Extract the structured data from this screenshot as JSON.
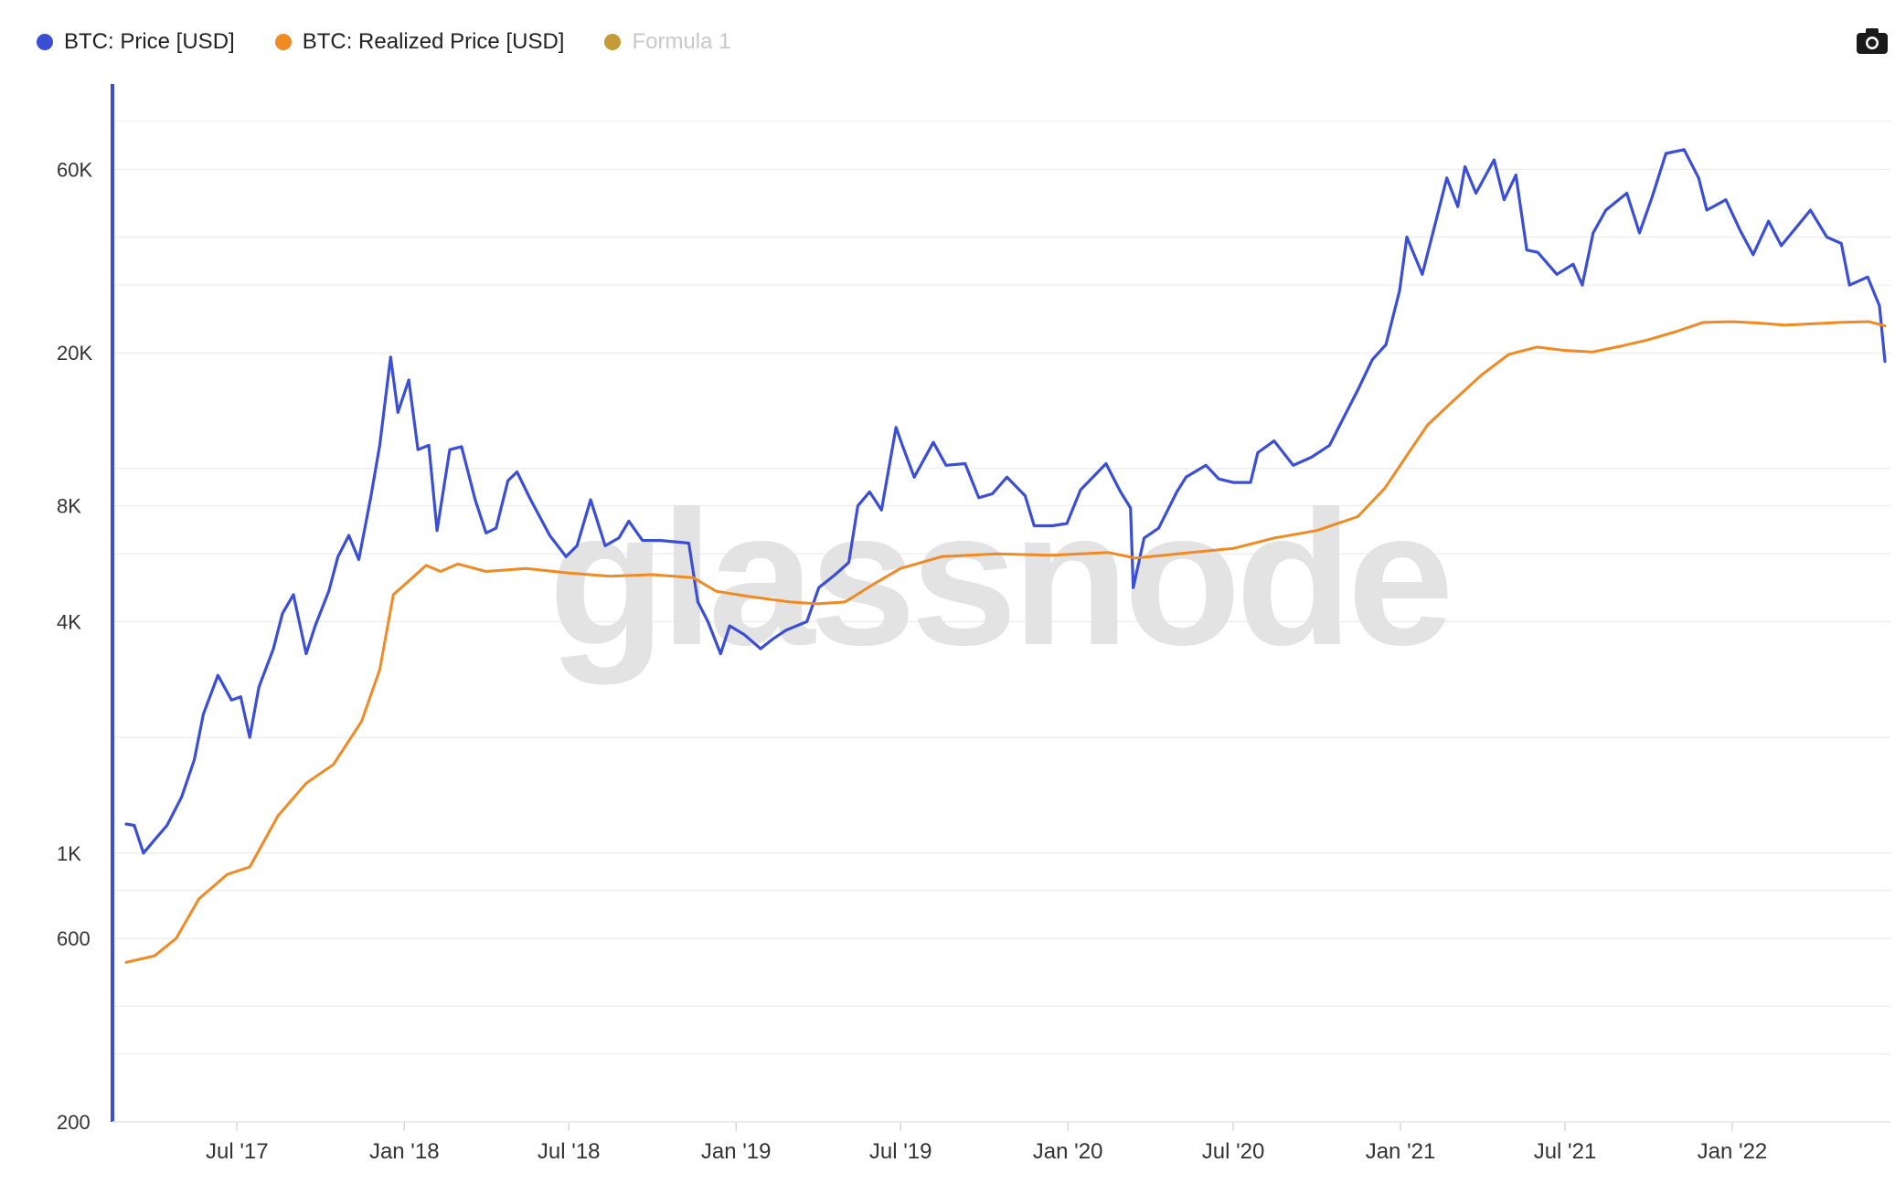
{
  "legend": [
    {
      "label": "BTC: Price [USD]",
      "color": "#3b4fd6",
      "dim": false
    },
    {
      "label": "BTC: Realized Price [USD]",
      "color": "#f08a24",
      "dim": false
    },
    {
      "label": "Formula 1",
      "color": "#c59a38",
      "dim": true
    }
  ],
  "toolbar": {
    "camera_icon": "camera-icon"
  },
  "watermark": "glassnode",
  "chart_data": {
    "type": "line",
    "scale": "log",
    "ylim": [
      200,
      100000
    ],
    "xlim": [
      "2017-03-01",
      "2022-06-18"
    ],
    "y_ticks": [
      200,
      600,
      1000,
      4000,
      8000,
      20000,
      60000
    ],
    "y_tick_labels": [
      "200",
      "600",
      "1K",
      "4K",
      "8K",
      "20K",
      "60K"
    ],
    "x_ticks": [
      "2017-07-01",
      "2018-01-01",
      "2018-07-01",
      "2019-01-01",
      "2019-07-01",
      "2020-01-01",
      "2020-07-01",
      "2021-01-01",
      "2021-07-01",
      "2022-01-01"
    ],
    "x_tick_labels": [
      "Jul '17",
      "Jan '18",
      "Jul '18",
      "Jan '19",
      "Jul '19",
      "Jan '20",
      "Jul '20",
      "Jan '21",
      "Jul '21",
      "Jan '22"
    ],
    "grid": true,
    "legend_position": "top-left",
    "series": [
      {
        "name": "BTC: Price [USD]",
        "color": "#3b4fd6",
        "points": [
          [
            "2017-03-01",
            1190
          ],
          [
            "2017-03-10",
            1180
          ],
          [
            "2017-03-20",
            1000
          ],
          [
            "2017-04-01",
            1080
          ],
          [
            "2017-04-15",
            1180
          ],
          [
            "2017-05-01",
            1400
          ],
          [
            "2017-05-15",
            1750
          ],
          [
            "2017-05-25",
            2300
          ],
          [
            "2017-06-10",
            2900
          ],
          [
            "2017-06-25",
            2500
          ],
          [
            "2017-07-05",
            2550
          ],
          [
            "2017-07-15",
            2000
          ],
          [
            "2017-07-25",
            2700
          ],
          [
            "2017-08-10",
            3400
          ],
          [
            "2017-08-20",
            4200
          ],
          [
            "2017-09-01",
            4700
          ],
          [
            "2017-09-15",
            3300
          ],
          [
            "2017-09-25",
            3900
          ],
          [
            "2017-10-10",
            4800
          ],
          [
            "2017-10-20",
            5900
          ],
          [
            "2017-11-01",
            6700
          ],
          [
            "2017-11-12",
            5800
          ],
          [
            "2017-11-25",
            8400
          ],
          [
            "2017-12-05",
            11500
          ],
          [
            "2017-12-17",
            19500
          ],
          [
            "2017-12-25",
            14000
          ],
          [
            "2018-01-06",
            17000
          ],
          [
            "2018-01-16",
            11200
          ],
          [
            "2018-01-28",
            11500
          ],
          [
            "2018-02-06",
            6900
          ],
          [
            "2018-02-20",
            11200
          ],
          [
            "2018-03-05",
            11400
          ],
          [
            "2018-03-20",
            8300
          ],
          [
            "2018-04-01",
            6800
          ],
          [
            "2018-04-12",
            7000
          ],
          [
            "2018-04-25",
            9300
          ],
          [
            "2018-05-05",
            9800
          ],
          [
            "2018-05-20",
            8300
          ],
          [
            "2018-06-10",
            6700
          ],
          [
            "2018-06-28",
            5900
          ],
          [
            "2018-07-10",
            6300
          ],
          [
            "2018-07-25",
            8300
          ],
          [
            "2018-08-10",
            6300
          ],
          [
            "2018-08-25",
            6600
          ],
          [
            "2018-09-05",
            7300
          ],
          [
            "2018-09-20",
            6500
          ],
          [
            "2018-10-10",
            6500
          ],
          [
            "2018-11-10",
            6400
          ],
          [
            "2018-11-20",
            4500
          ],
          [
            "2018-12-01",
            4000
          ],
          [
            "2018-12-15",
            3300
          ],
          [
            "2018-12-25",
            3900
          ],
          [
            "2019-01-10",
            3700
          ],
          [
            "2019-01-28",
            3400
          ],
          [
            "2019-02-10",
            3600
          ],
          [
            "2019-02-25",
            3800
          ],
          [
            "2019-03-20",
            4000
          ],
          [
            "2019-04-02",
            4900
          ],
          [
            "2019-04-20",
            5300
          ],
          [
            "2019-05-05",
            5700
          ],
          [
            "2019-05-15",
            8000
          ],
          [
            "2019-05-28",
            8700
          ],
          [
            "2019-06-10",
            7800
          ],
          [
            "2019-06-26",
            12800
          ],
          [
            "2019-07-03",
            11500
          ],
          [
            "2019-07-16",
            9500
          ],
          [
            "2019-08-06",
            11700
          ],
          [
            "2019-08-20",
            10200
          ],
          [
            "2019-09-10",
            10300
          ],
          [
            "2019-09-25",
            8400
          ],
          [
            "2019-10-10",
            8600
          ],
          [
            "2019-10-26",
            9500
          ],
          [
            "2019-11-15",
            8500
          ],
          [
            "2019-11-25",
            7100
          ],
          [
            "2019-12-15",
            7100
          ],
          [
            "2019-12-31",
            7200
          ],
          [
            "2020-01-15",
            8800
          ],
          [
            "2020-02-12",
            10300
          ],
          [
            "2020-02-28",
            8700
          ],
          [
            "2020-03-10",
            7900
          ],
          [
            "2020-03-13",
            4900
          ],
          [
            "2020-03-25",
            6600
          ],
          [
            "2020-04-10",
            7000
          ],
          [
            "2020-04-30",
            8700
          ],
          [
            "2020-05-10",
            9500
          ],
          [
            "2020-06-01",
            10200
          ],
          [
            "2020-06-15",
            9400
          ],
          [
            "2020-07-01",
            9200
          ],
          [
            "2020-07-20",
            9200
          ],
          [
            "2020-07-28",
            11000
          ],
          [
            "2020-08-15",
            11800
          ],
          [
            "2020-09-05",
            10200
          ],
          [
            "2020-09-25",
            10700
          ],
          [
            "2020-10-15",
            11500
          ],
          [
            "2020-10-30",
            13500
          ],
          [
            "2020-11-15",
            16000
          ],
          [
            "2020-12-01",
            19200
          ],
          [
            "2020-12-16",
            21000
          ],
          [
            "2020-12-31",
            29000
          ],
          [
            "2021-01-08",
            40000
          ],
          [
            "2021-01-25",
            32000
          ],
          [
            "2021-02-10",
            45000
          ],
          [
            "2021-02-21",
            57000
          ],
          [
            "2021-03-05",
            48000
          ],
          [
            "2021-03-13",
            61000
          ],
          [
            "2021-03-25",
            52000
          ],
          [
            "2021-04-14",
            63500
          ],
          [
            "2021-04-25",
            50000
          ],
          [
            "2021-05-08",
            58000
          ],
          [
            "2021-05-20",
            37000
          ],
          [
            "2021-06-01",
            36500
          ],
          [
            "2021-06-22",
            32000
          ],
          [
            "2021-07-10",
            34000
          ],
          [
            "2021-07-20",
            30000
          ],
          [
            "2021-08-01",
            41000
          ],
          [
            "2021-08-15",
            47000
          ],
          [
            "2021-09-07",
            52000
          ],
          [
            "2021-09-21",
            41000
          ],
          [
            "2021-10-05",
            51000
          ],
          [
            "2021-10-20",
            66000
          ],
          [
            "2021-11-09",
            67500
          ],
          [
            "2021-11-25",
            57000
          ],
          [
            "2021-12-04",
            47000
          ],
          [
            "2021-12-25",
            50000
          ],
          [
            "2022-01-10",
            41500
          ],
          [
            "2022-01-24",
            36000
          ],
          [
            "2022-02-10",
            44000
          ],
          [
            "2022-02-24",
            38000
          ],
          [
            "2022-03-28",
            47000
          ],
          [
            "2022-04-15",
            40000
          ],
          [
            "2022-05-01",
            38500
          ],
          [
            "2022-05-10",
            30000
          ],
          [
            "2022-05-30",
            31500
          ],
          [
            "2022-06-12",
            26500
          ],
          [
            "2022-06-18",
            19000
          ]
        ]
      },
      {
        "name": "BTC: Realized Price [USD]",
        "color": "#f08a24",
        "points": [
          [
            "2017-03-01",
            520
          ],
          [
            "2017-04-01",
            540
          ],
          [
            "2017-04-25",
            600
          ],
          [
            "2017-05-20",
            760
          ],
          [
            "2017-06-20",
            880
          ],
          [
            "2017-07-15",
            920
          ],
          [
            "2017-08-15",
            1250
          ],
          [
            "2017-09-15",
            1520
          ],
          [
            "2017-10-15",
            1700
          ],
          [
            "2017-11-15",
            2200
          ],
          [
            "2017-12-05",
            3000
          ],
          [
            "2017-12-20",
            4700
          ],
          [
            "2018-01-10",
            5200
          ],
          [
            "2018-01-25",
            5600
          ],
          [
            "2018-02-10",
            5400
          ],
          [
            "2018-03-01",
            5650
          ],
          [
            "2018-04-01",
            5400
          ],
          [
            "2018-05-15",
            5500
          ],
          [
            "2018-07-01",
            5350
          ],
          [
            "2018-08-15",
            5250
          ],
          [
            "2018-10-01",
            5300
          ],
          [
            "2018-11-15",
            5200
          ],
          [
            "2018-12-10",
            4800
          ],
          [
            "2019-01-15",
            4650
          ],
          [
            "2019-03-01",
            4500
          ],
          [
            "2019-04-01",
            4450
          ],
          [
            "2019-05-01",
            4500
          ],
          [
            "2019-06-01",
            5000
          ],
          [
            "2019-07-01",
            5500
          ],
          [
            "2019-08-15",
            5900
          ],
          [
            "2019-10-15",
            6000
          ],
          [
            "2019-12-15",
            5950
          ],
          [
            "2020-02-15",
            6050
          ],
          [
            "2020-03-15",
            5850
          ],
          [
            "2020-05-01",
            6000
          ],
          [
            "2020-07-01",
            6200
          ],
          [
            "2020-08-15",
            6600
          ],
          [
            "2020-10-01",
            6900
          ],
          [
            "2020-11-15",
            7500
          ],
          [
            "2020-12-15",
            8900
          ],
          [
            "2021-01-10",
            11000
          ],
          [
            "2021-01-31",
            13000
          ],
          [
            "2021-02-28",
            15000
          ],
          [
            "2021-03-31",
            17500
          ],
          [
            "2021-04-30",
            19800
          ],
          [
            "2021-05-31",
            20700
          ],
          [
            "2021-06-30",
            20300
          ],
          [
            "2021-07-31",
            20100
          ],
          [
            "2021-08-31",
            20800
          ],
          [
            "2021-09-30",
            21600
          ],
          [
            "2021-10-31",
            22700
          ],
          [
            "2021-11-30",
            24000
          ],
          [
            "2021-12-31",
            24100
          ],
          [
            "2022-01-31",
            23900
          ],
          [
            "2022-02-28",
            23600
          ],
          [
            "2022-03-31",
            23800
          ],
          [
            "2022-04-30",
            24000
          ],
          [
            "2022-05-31",
            24100
          ],
          [
            "2022-06-18",
            23500
          ]
        ]
      }
    ]
  }
}
